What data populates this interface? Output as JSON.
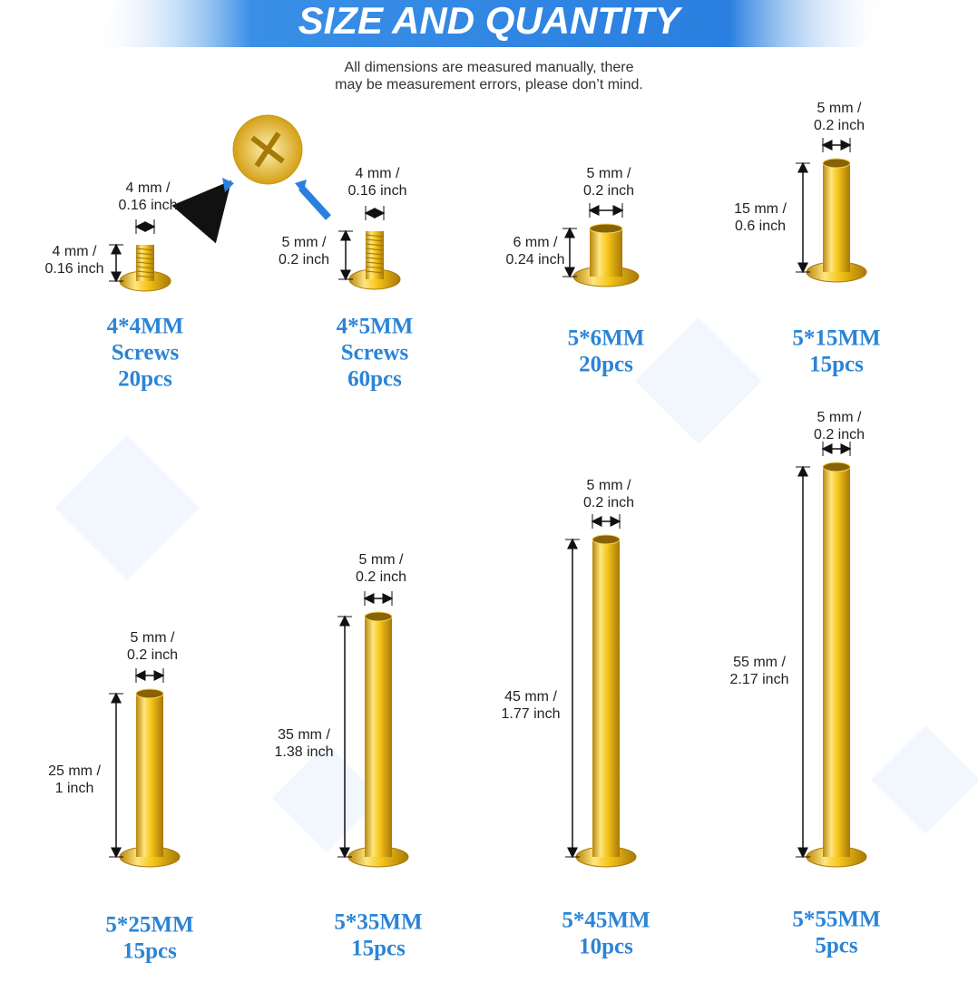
{
  "header": {
    "title": "SIZE AND QUANTITY",
    "note": [
      "All dimensions are measured manually, there",
      "may be measurement errors, please don’t mind."
    ]
  },
  "items": [
    {
      "width": [
        "4 mm /",
        "0.16 inch"
      ],
      "height": [
        "4 mm /",
        "0.16 inch"
      ],
      "name": [
        "4*4MM",
        "Screws",
        "20pcs"
      ]
    },
    {
      "width": [
        "4 mm /",
        "0.16 inch"
      ],
      "height": [
        "5 mm /",
        "0.2 inch"
      ],
      "name": [
        "4*5MM",
        "Screws",
        "60pcs"
      ]
    },
    {
      "width": [
        "5 mm /",
        "0.2 inch"
      ],
      "height": [
        "6 mm /",
        "0.24 inch"
      ],
      "name": [
        "5*6MM",
        "20pcs"
      ]
    },
    {
      "width": [
        "5 mm /",
        "0.2 inch"
      ],
      "height": [
        "15 mm /",
        "0.6 inch"
      ],
      "name": [
        "5*15MM",
        "15pcs"
      ]
    },
    {
      "width": [
        "5 mm /",
        "0.2 inch"
      ],
      "height": [
        "25 mm /",
        "1 inch"
      ],
      "name": [
        "5*25MM",
        "15pcs"
      ]
    },
    {
      "width": [
        "5 mm /",
        "0.2 inch"
      ],
      "height": [
        "35 mm /",
        "1.38 inch"
      ],
      "name": [
        "5*35MM",
        "15pcs"
      ]
    },
    {
      "width": [
        "5 mm /",
        "0.2 inch"
      ],
      "height": [
        "45 mm /",
        "1.77 inch"
      ],
      "name": [
        "5*45MM",
        "10pcs"
      ]
    },
    {
      "width": [
        "5 mm /",
        "0.2 inch"
      ],
      "height": [
        "55 mm /",
        "2.17 inch"
      ],
      "name": [
        "5*55MM",
        "5pcs"
      ]
    }
  ]
}
